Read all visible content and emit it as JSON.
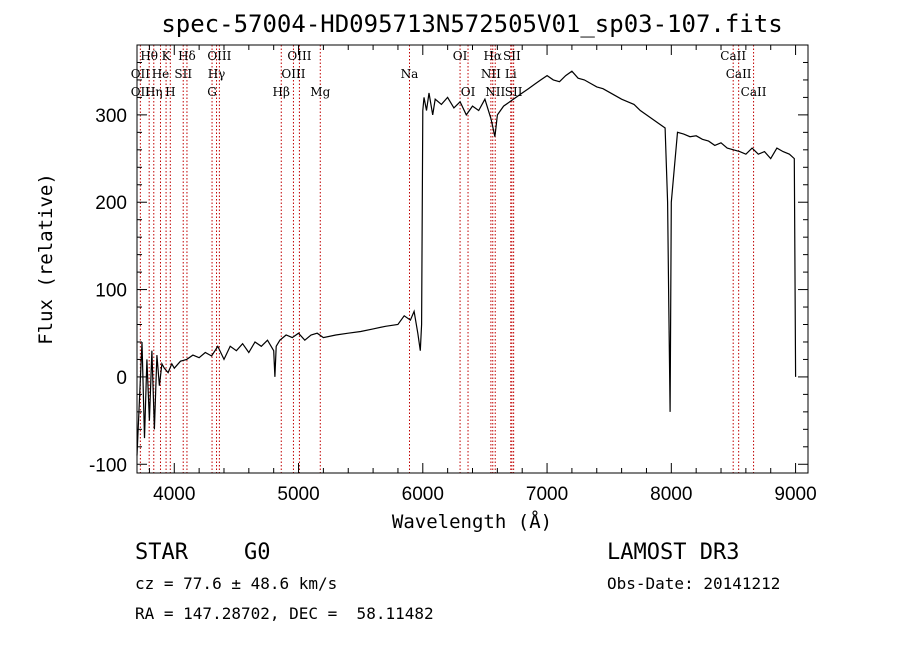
{
  "chart_data": {
    "type": "line",
    "title": "spec-57004-HD095713N572505V01_sp03-107.fits",
    "xlabel": "Wavelength (Å)",
    "ylabel": "Flux (relative)",
    "xlim": [
      3700,
      9100
    ],
    "ylim": [
      -110,
      380
    ],
    "xticks": [
      4000,
      5000,
      6000,
      7000,
      8000,
      9000
    ],
    "yticks": [
      -100,
      0,
      100,
      200,
      300
    ],
    "grid": false,
    "series": [
      {
        "name": "spectrum",
        "x": [
          3700,
          3740,
          3760,
          3780,
          3800,
          3820,
          3840,
          3860,
          3880,
          3900,
          3920,
          3950,
          3980,
          4000,
          4050,
          4100,
          4150,
          4200,
          4250,
          4300,
          4350,
          4400,
          4450,
          4500,
          4550,
          4600,
          4650,
          4700,
          4750,
          4800,
          4810,
          4820,
          4850,
          4900,
          4950,
          5000,
          5050,
          5100,
          5150,
          5200,
          5300,
          5400,
          5500,
          5600,
          5700,
          5800,
          5850,
          5900,
          5930,
          5960,
          5980,
          5990,
          6000,
          6010,
          6030,
          6050,
          6080,
          6100,
          6150,
          6200,
          6250,
          6300,
          6350,
          6400,
          6450,
          6500,
          6550,
          6580,
          6600,
          6650,
          6700,
          6750,
          6800,
          6850,
          6900,
          6950,
          7000,
          7050,
          7100,
          7150,
          7200,
          7250,
          7300,
          7350,
          7400,
          7450,
          7500,
          7550,
          7600,
          7650,
          7700,
          7750,
          7800,
          7850,
          7900,
          7950,
          7970,
          7980,
          7990,
          8000,
          8050,
          8100,
          8150,
          8200,
          8250,
          8300,
          8350,
          8400,
          8450,
          8500,
          8550,
          8600,
          8650,
          8700,
          8750,
          8800,
          8850,
          8900,
          8950,
          8990,
          9000
        ],
        "y": [
          -90,
          40,
          -70,
          20,
          -50,
          30,
          -60,
          25,
          -10,
          15,
          10,
          5,
          15,
          10,
          18,
          20,
          25,
          22,
          28,
          24,
          35,
          20,
          35,
          30,
          38,
          28,
          40,
          35,
          42,
          30,
          0,
          35,
          42,
          48,
          45,
          50,
          42,
          48,
          50,
          45,
          48,
          50,
          52,
          55,
          58,
          60,
          70,
          65,
          75,
          50,
          30,
          60,
          305,
          320,
          305,
          325,
          300,
          318,
          312,
          320,
          308,
          315,
          300,
          310,
          305,
          318,
          295,
          275,
          300,
          310,
          315,
          320,
          325,
          330,
          335,
          340,
          345,
          340,
          338,
          345,
          350,
          342,
          340,
          336,
          332,
          330,
          326,
          322,
          318,
          315,
          312,
          305,
          300,
          295,
          290,
          285,
          200,
          80,
          -40,
          200,
          280,
          278,
          275,
          276,
          272,
          270,
          265,
          268,
          262,
          260,
          258,
          255,
          262,
          255,
          258,
          250,
          262,
          258,
          255,
          250,
          0
        ]
      }
    ],
    "spectral_lines": [
      {
        "label": "Hθ",
        "wave": 3798,
        "row": 0
      },
      {
        "label": "K",
        "wave": 3934,
        "row": 0
      },
      {
        "label": "Hδ",
        "wave": 4102,
        "row": 0
      },
      {
        "label": "OIII",
        "wave": 4363,
        "row": 0
      },
      {
        "label": "OIII",
        "wave": 5007,
        "row": 0
      },
      {
        "label": "OI",
        "wave": 6300,
        "row": 0
      },
      {
        "label": "Hα",
        "wave": 6563,
        "row": 0
      },
      {
        "label": "SII",
        "wave": 6717,
        "row": 0
      },
      {
        "label": "CaII",
        "wave": 8498,
        "row": 0
      },
      {
        "label": "OII",
        "wave": 3727,
        "row": 1
      },
      {
        "label": "He",
        "wave": 3889,
        "row": 1
      },
      {
        "label": "SII",
        "wave": 4072,
        "row": 1
      },
      {
        "label": "Hγ",
        "wave": 4340,
        "row": 1
      },
      {
        "label": "OIII",
        "wave": 4959,
        "row": 1
      },
      {
        "label": "Na",
        "wave": 5893,
        "row": 1
      },
      {
        "label": "NII",
        "wave": 6548,
        "row": 1
      },
      {
        "label": "Li",
        "wave": 6708,
        "row": 1
      },
      {
        "label": "CaII",
        "wave": 8542,
        "row": 1
      },
      {
        "label": "OII",
        "wave": 3727,
        "row": 2
      },
      {
        "label": "Hη",
        "wave": 3835,
        "row": 2
      },
      {
        "label": "H",
        "wave": 3968,
        "row": 2
      },
      {
        "label": "G",
        "wave": 4304,
        "row": 2
      },
      {
        "label": "Hβ",
        "wave": 4861,
        "row": 2
      },
      {
        "label": "Mg",
        "wave": 5175,
        "row": 2
      },
      {
        "label": "OI",
        "wave": 6364,
        "row": 2
      },
      {
        "label": "NII",
        "wave": 6583,
        "row": 2
      },
      {
        "label": "SII",
        "wave": 6731,
        "row": 2
      },
      {
        "label": "CaII",
        "wave": 8662,
        "row": 2
      }
    ]
  },
  "info": {
    "class": "STAR",
    "subclass": "G0",
    "survey": "LAMOST DR3",
    "cz": "cz = 77.6 ± 48.6 km/s",
    "obs_date": "Obs-Date: 20141212",
    "radec": "RA = 147.28702, DEC =  58.11482"
  },
  "colors": {
    "line": "#000000",
    "marker": "#c00000",
    "background": "#ffffff"
  }
}
